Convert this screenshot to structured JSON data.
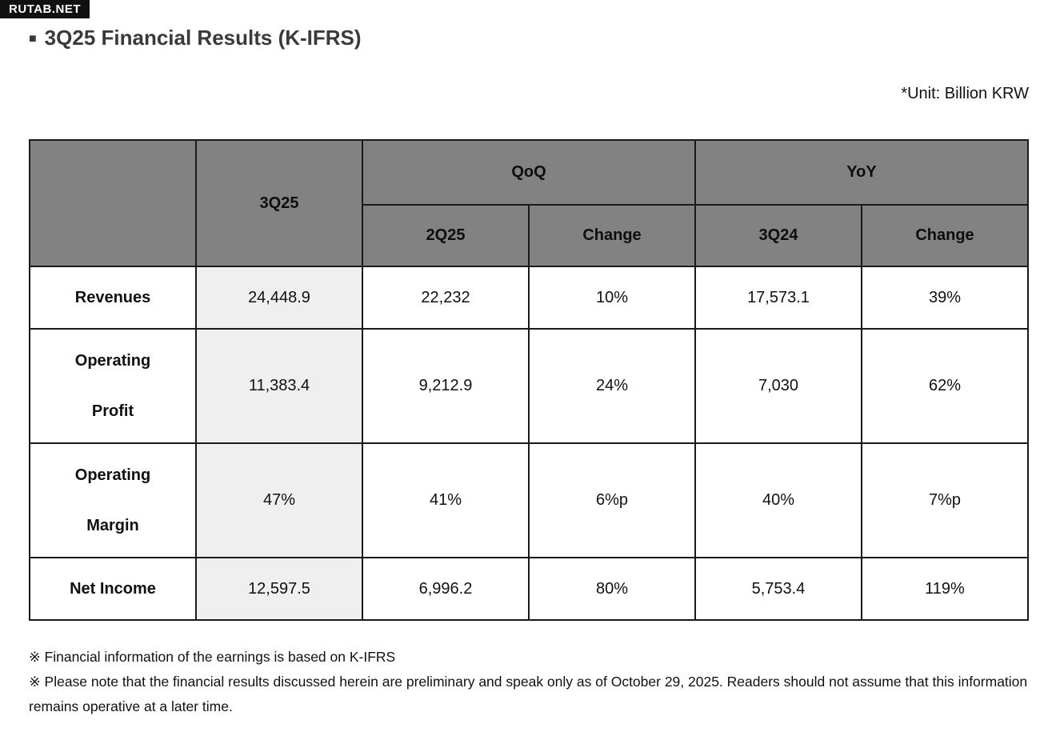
{
  "badge": {
    "text": "RUTAB.NET"
  },
  "title": {
    "bullet": "■",
    "text": "3Q25 Financial Results (K-IFRS)"
  },
  "unit_note": "*Unit: Billion KRW",
  "colors": {
    "header_bg": "#828282",
    "highlight_bg": "#efefef",
    "border": "#1a1a1a"
  },
  "table": {
    "corner": "",
    "current_label": "3Q25",
    "qoq_label": "QoQ",
    "yoy_label": "YoY",
    "subheaders": {
      "qoq_prev": "2Q25",
      "qoq_change": "Change",
      "yoy_prev": "3Q24",
      "yoy_change": "Change"
    },
    "rows": [
      {
        "label": "Revenues",
        "current": "24,448.9",
        "qoq_prev": "22,232",
        "qoq_change": "10%",
        "yoy_prev": "17,573.1",
        "yoy_change": "39%"
      },
      {
        "label": "Operating\nProfit",
        "current": "11,383.4",
        "qoq_prev": "9,212.9",
        "qoq_change": "24%",
        "yoy_prev": "7,030",
        "yoy_change": "62%"
      },
      {
        "label": "Operating\nMargin",
        "current": "47%",
        "qoq_prev": "41%",
        "qoq_change": "6%p",
        "yoy_prev": "40%",
        "yoy_change": "7%p"
      },
      {
        "label": "Net Income",
        "current": "12,597.5",
        "qoq_prev": "6,996.2",
        "qoq_change": "80%",
        "yoy_prev": "5,753.4",
        "yoy_change": "119%"
      }
    ]
  },
  "footnotes": [
    "※ Financial information of the earnings is based on K-IFRS",
    "※ Please note that the financial results discussed herein are preliminary and speak only as of October 29, 2025. Readers should not assume that this information remains operative at a later time."
  ]
}
